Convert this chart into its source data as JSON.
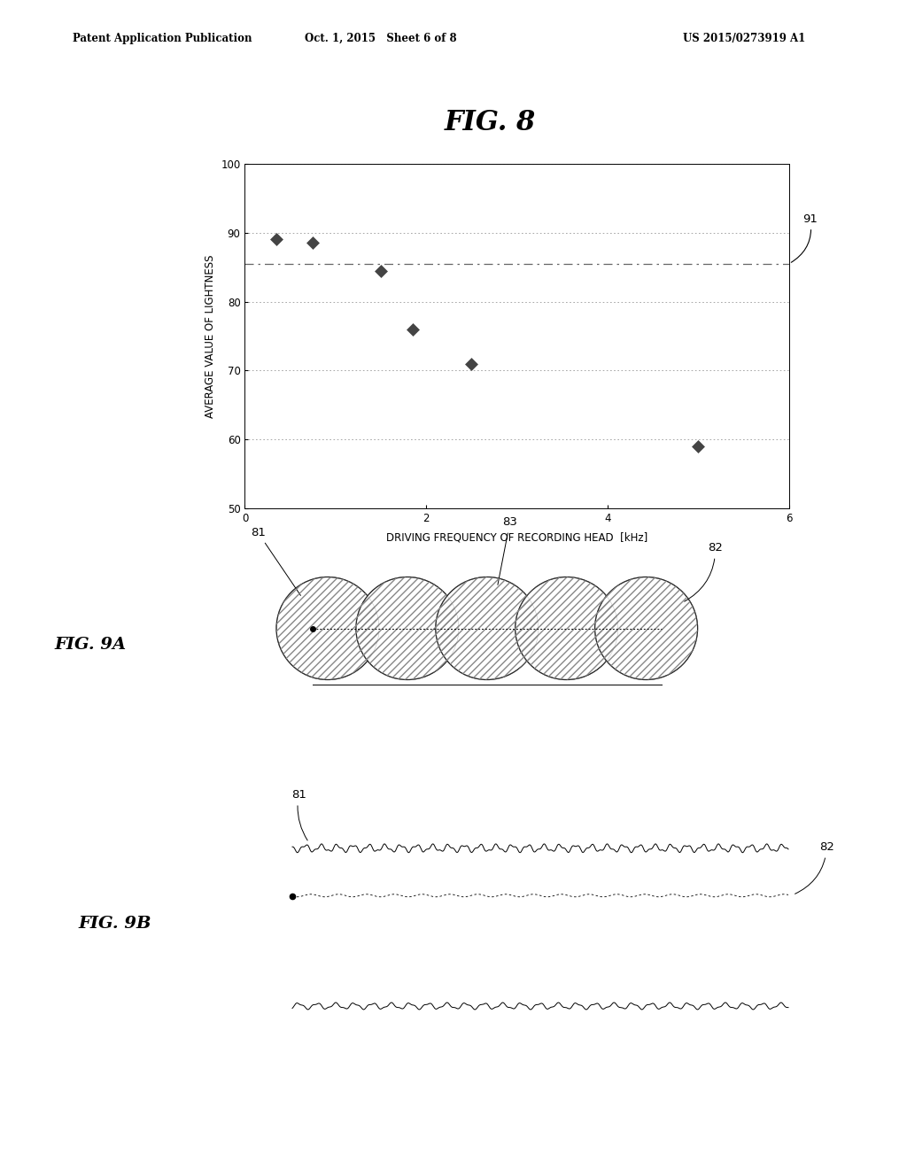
{
  "header_left": "Patent Application Publication",
  "header_mid": "Oct. 1, 2015   Sheet 6 of 8",
  "header_right": "US 2015/0273919 A1",
  "fig8_title": "FIG. 8",
  "fig8_xlabel": "DRIVING FREQUENCY OF RECORDING HEAD  [kHz]",
  "fig8_ylabel": "AVERAGE VALUE OF LIGHTNESS",
  "fig8_xlim": [
    0,
    6
  ],
  "fig8_ylim": [
    50.0,
    100.0
  ],
  "fig8_xticks": [
    0,
    2,
    4,
    6
  ],
  "fig8_yticks": [
    50.0,
    60.0,
    70.0,
    80.0,
    90.0,
    100.0
  ],
  "fig8_scatter_x": [
    0.35,
    0.75,
    1.5,
    1.85,
    2.5,
    5.0
  ],
  "fig8_scatter_y": [
    89.0,
    88.5,
    84.5,
    76.0,
    71.0,
    59.0
  ],
  "fig8_hline_y": 85.5,
  "fig8_label_91": "91",
  "fig9a_title": "FIG. 9A",
  "fig9a_label_81": "81",
  "fig9a_label_82": "82",
  "fig9a_label_83": "83",
  "fig9b_title": "FIG. 9B",
  "fig9b_label_81": "81",
  "fig9b_label_82": "82",
  "bg_color": "#ffffff",
  "text_color": "#000000",
  "scatter_color": "#444444",
  "hline_color": "#666666",
  "grid_color": "#999999"
}
